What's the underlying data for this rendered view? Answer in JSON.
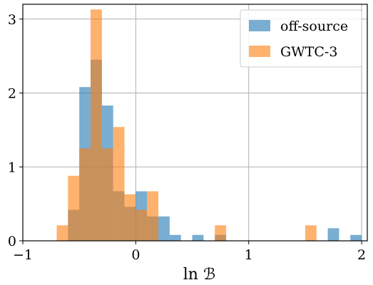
{
  "chart_data": {
    "type": "bar",
    "subtype": "overlaid-histogram",
    "xlabel": "ln ℬ",
    "ylabel": "",
    "xlim": [
      -1,
      2.05
    ],
    "ylim": [
      0,
      3.2
    ],
    "xticks": [
      -1,
      0,
      1,
      2
    ],
    "xtick_labels": [
      "−1",
      "0",
      "1",
      "2"
    ],
    "yticks": [
      0,
      1,
      2,
      3
    ],
    "ytick_labels": [
      "0",
      "1",
      "2",
      "3"
    ],
    "grid": true,
    "legend_position": "top-right",
    "bin_width": 0.1,
    "series": [
      {
        "name": "off-source",
        "color": "#1f77b4",
        "bins": [
          {
            "x0": -0.6,
            "x1": -0.5,
            "value": 0.42
          },
          {
            "x0": -0.5,
            "x1": -0.4,
            "value": 2.08
          },
          {
            "x0": -0.4,
            "x1": -0.3,
            "value": 2.45
          },
          {
            "x0": -0.3,
            "x1": -0.2,
            "value": 1.83
          },
          {
            "x0": -0.2,
            "x1": -0.1,
            "value": 0.67
          },
          {
            "x0": -0.1,
            "x1": 0.0,
            "value": 0.46
          },
          {
            "x0": 0.0,
            "x1": 0.1,
            "value": 0.67
          },
          {
            "x0": 0.1,
            "x1": 0.2,
            "value": 0.33
          },
          {
            "x0": 0.2,
            "x1": 0.3,
            "value": 0.33
          },
          {
            "x0": 0.3,
            "x1": 0.4,
            "value": 0.08
          },
          {
            "x0": 0.5,
            "x1": 0.6,
            "value": 0.08
          },
          {
            "x0": 0.7,
            "x1": 0.8,
            "value": 0.08
          },
          {
            "x0": 1.7,
            "x1": 1.8,
            "value": 0.17
          },
          {
            "x0": 1.9,
            "x1": 2.0,
            "value": 0.08
          }
        ]
      },
      {
        "name": "GWTC-3",
        "color": "#ff7f0e",
        "bins": [
          {
            "x0": -0.7,
            "x1": -0.6,
            "value": 0.21
          },
          {
            "x0": -0.6,
            "x1": -0.5,
            "value": 0.88
          },
          {
            "x0": -0.5,
            "x1": -0.4,
            "value": 1.25
          },
          {
            "x0": -0.4,
            "x1": -0.3,
            "value": 3.13
          },
          {
            "x0": -0.3,
            "x1": -0.2,
            "value": 1.25
          },
          {
            "x0": -0.2,
            "x1": -0.1,
            "value": 1.54
          },
          {
            "x0": -0.1,
            "x1": 0.0,
            "value": 0.63
          },
          {
            "x0": 0.0,
            "x1": 0.1,
            "value": 0.42
          },
          {
            "x0": 0.1,
            "x1": 0.2,
            "value": 0.67
          },
          {
            "x0": 0.7,
            "x1": 0.8,
            "value": 0.21
          },
          {
            "x0": 1.5,
            "x1": 1.6,
            "value": 0.21
          }
        ]
      }
    ]
  }
}
